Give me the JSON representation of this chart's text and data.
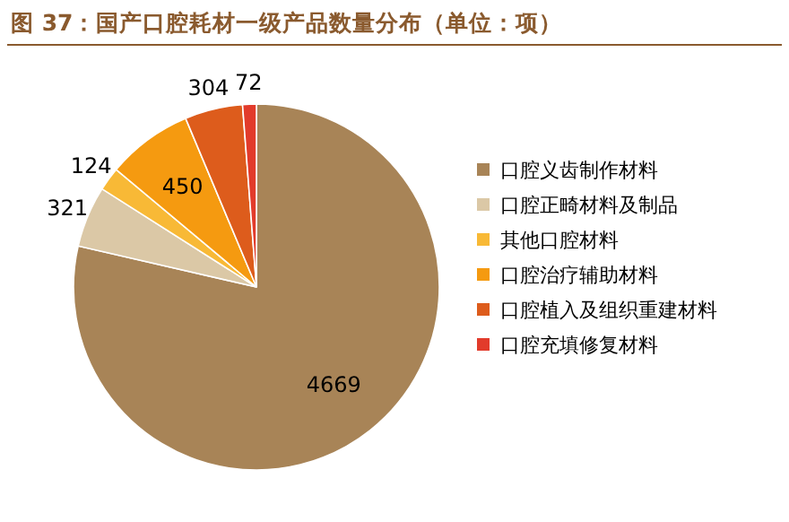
{
  "chart_data": {
    "type": "pie",
    "title": "图 37：国产口腔耗材一级产品数量分布（单位：项）",
    "categories": [
      "口腔义齿制作材料",
      "口腔正畸材料及制品",
      "其他口腔材料",
      "口腔治疗辅助材料",
      "口腔植入及组织重建材料",
      "口腔充填修复材料"
    ],
    "values": [
      4669,
      321,
      124,
      450,
      304,
      72
    ],
    "colors": [
      "#a88457",
      "#dbc8a6",
      "#f8b936",
      "#f59a10",
      "#dd5c1c",
      "#e23b2b"
    ],
    "data_labels": true,
    "legend": "right"
  }
}
